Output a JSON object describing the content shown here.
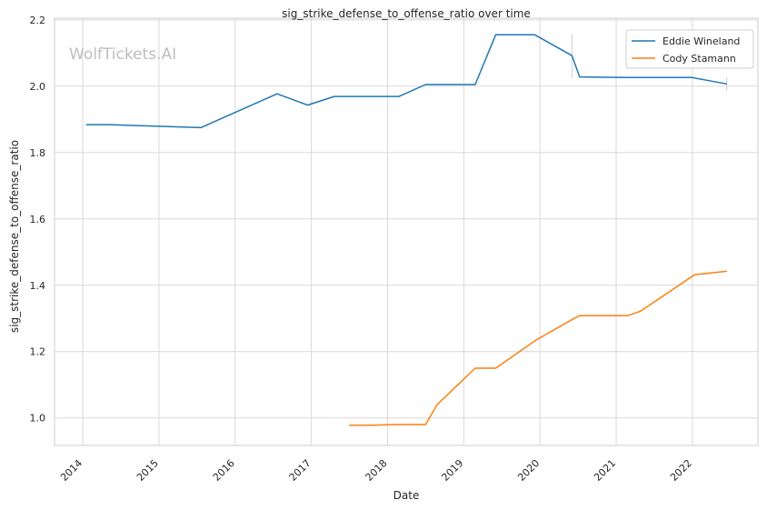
{
  "chart_data": {
    "type": "line",
    "title": "sig_strike_defense_to_offense_ratio over time",
    "xlabel": "Date",
    "ylabel": "sig_strike_defense_to_offense_ratio",
    "watermark": "WolfTickets.AI",
    "xlim": [
      2013.63,
      2022.86
    ],
    "ylim": [
      0.917,
      2.205
    ],
    "x_ticks": [
      "2014",
      "2015",
      "2016",
      "2017",
      "2018",
      "2019",
      "2020",
      "2021",
      "2022"
    ],
    "y_ticks": [
      "1.0",
      "1.2",
      "1.4",
      "1.6",
      "1.8",
      "2.0",
      "2.2"
    ],
    "grid": true,
    "legend_position": "top-right",
    "series": [
      {
        "name": "Eddie Wineland",
        "color": "#1f77b4",
        "x": [
          2014.05,
          2014.35,
          2015.55,
          2016.55,
          2016.95,
          2017.3,
          2018.15,
          2018.5,
          2019.15,
          2019.42,
          2019.93,
          2020.42,
          2020.52,
          2021.15,
          2021.5,
          2022.0,
          2022.45
        ],
        "y": [
          1.884,
          1.884,
          1.875,
          1.977,
          1.943,
          1.969,
          1.969,
          2.005,
          2.005,
          2.155,
          2.155,
          2.092,
          2.028,
          2.026,
          2.026,
          2.026,
          2.007
        ],
        "error_bars": [
          {
            "x": 2020.42,
            "low": 2.025,
            "high": 2.158
          },
          {
            "x": 2022.45,
            "low": 1.988,
            "high": 2.026
          }
        ]
      },
      {
        "name": "Cody Stamann",
        "color": "#ff7f0e",
        "x": [
          2017.5,
          2017.8,
          2018.1,
          2018.5,
          2018.65,
          2019.15,
          2019.42,
          2019.95,
          2020.45,
          2020.52,
          2021.15,
          2021.32,
          2022.03,
          2022.45
        ],
        "y": [
          0.978,
          0.978,
          0.98,
          0.98,
          1.04,
          1.15,
          1.15,
          1.235,
          1.3,
          1.308,
          1.308,
          1.322,
          1.432,
          1.442
        ]
      }
    ]
  }
}
